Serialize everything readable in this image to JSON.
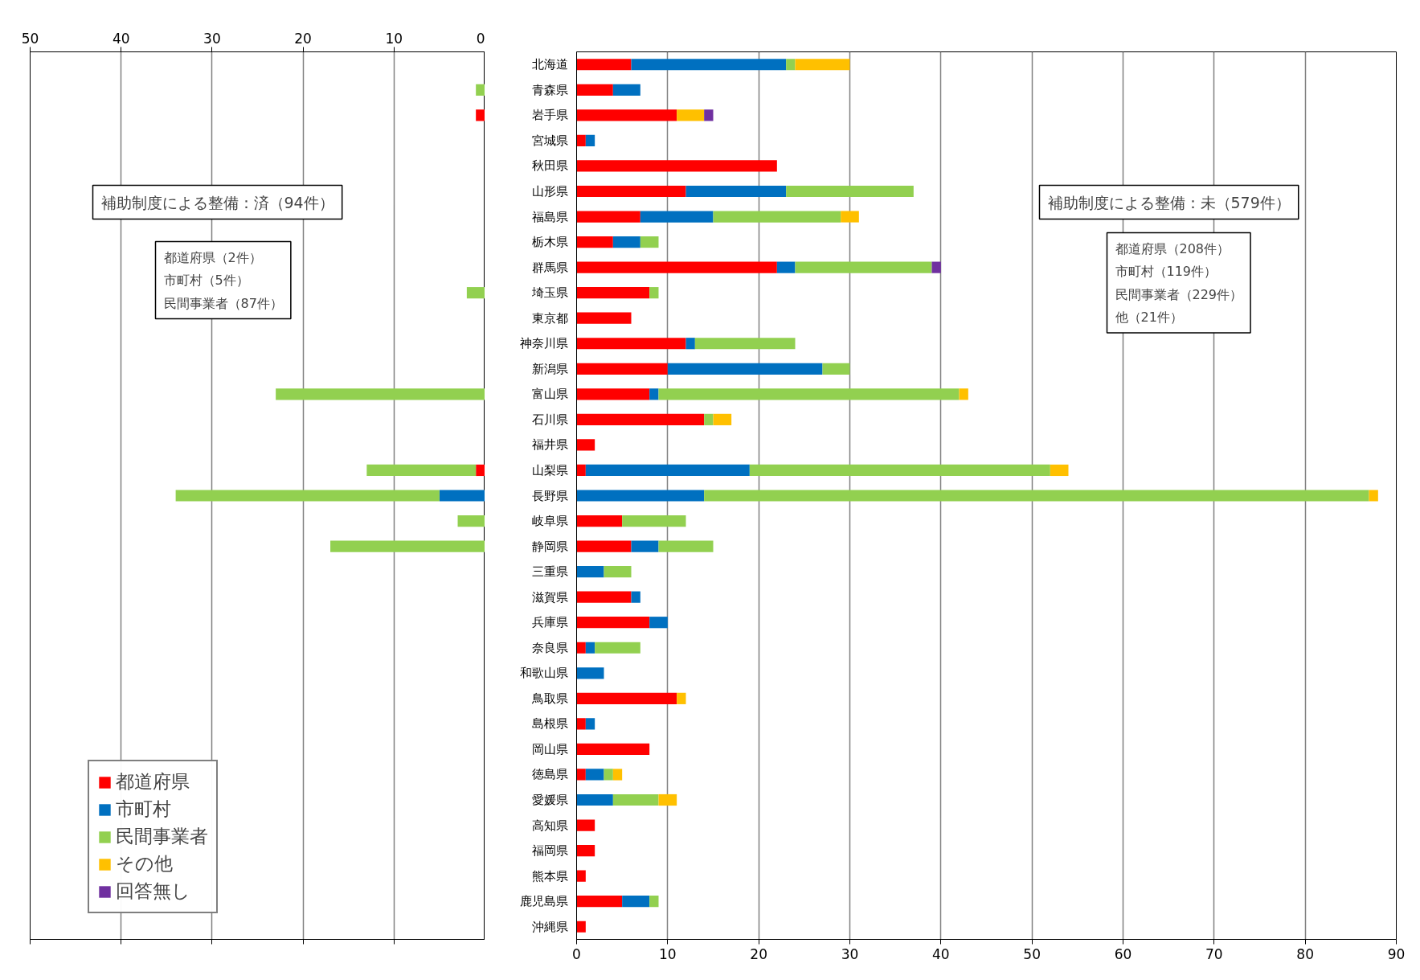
{
  "chart_data": [
    {
      "type": "bar",
      "orientation": "horizontal",
      "stacked": true,
      "legend": "bottom left",
      "grid": "x",
      "tick_labels": "x",
      "annotations": [
        "補助制度による整備：済（94件）",
        "都道府県（2件）",
        "市町村（5件）",
        "民間事業者（87件）"
      ],
      "categories": [
        null,
        null,
        null,
        null,
        null,
        null,
        null,
        null,
        null,
        null,
        null,
        null,
        null,
        null,
        null,
        null,
        null,
        null,
        null,
        null,
        null,
        null,
        null,
        null,
        null,
        null,
        null,
        null,
        null,
        null,
        null,
        null,
        null,
        null,
        null
      ],
      "xlim": [
        50,
        0
      ],
      "xticks": [
        50,
        40,
        30,
        20,
        10,
        0
      ],
      "series": [
        {
          "name": "都道府県",
          "color": "#ff0000",
          "values": [
            0,
            0,
            1,
            0,
            0,
            0,
            0,
            0,
            0,
            0,
            0,
            0,
            0,
            0,
            0,
            0,
            1,
            0,
            0,
            0,
            0,
            0,
            0,
            0,
            0,
            0,
            0,
            0,
            0,
            0,
            0,
            0,
            0,
            0,
            0
          ]
        },
        {
          "name": "市町村",
          "color": "#0070c0",
          "values": [
            0,
            0,
            0,
            0,
            0,
            0,
            0,
            0,
            0,
            0,
            0,
            0,
            0,
            0,
            0,
            0,
            0,
            5,
            0,
            0,
            0,
            0,
            0,
            0,
            0,
            0,
            0,
            0,
            0,
            0,
            0,
            0,
            0,
            0,
            0
          ]
        },
        {
          "name": "民間事業者",
          "color": "#92d050",
          "values": [
            0,
            1,
            0,
            0,
            0,
            0,
            0,
            0,
            0,
            2,
            0,
            0,
            0,
            23,
            0,
            0,
            12,
            29,
            3,
            17,
            0,
            0,
            0,
            0,
            0,
            0,
            0,
            0,
            0,
            0,
            0,
            0,
            0,
            0,
            0
          ]
        },
        {
          "name": "その他",
          "color": "#ffc000",
          "values": [
            0,
            0,
            0,
            0,
            0,
            0,
            0,
            0,
            0,
            0,
            0,
            0,
            0,
            0,
            0,
            0,
            0,
            0,
            0,
            0,
            0,
            0,
            0,
            0,
            0,
            0,
            0,
            0,
            0,
            0,
            0,
            0,
            0,
            0,
            0
          ]
        },
        {
          "name": "回答無し",
          "color": "#7030a0",
          "values": [
            0,
            0,
            0,
            0,
            0,
            0,
            0,
            0,
            0,
            0,
            0,
            0,
            0,
            0,
            0,
            0,
            0,
            0,
            0,
            0,
            0,
            0,
            0,
            0,
            0,
            0,
            0,
            0,
            0,
            0,
            0,
            0,
            0,
            0,
            0
          ]
        }
      ]
    },
    {
      "type": "bar",
      "orientation": "horizontal",
      "stacked": true,
      "grid": "x",
      "annotations": [
        "補助制度による整備：未（579件）",
        "都道府県（208件）",
        "市町村（119件）",
        "民間事業者（229件）",
        "他（21件）"
      ],
      "categories": [
        "北海道",
        "青森県",
        "岩手県",
        "宮城県",
        "秋田県",
        "山形県",
        "福島県",
        "栃木県",
        "群馬県",
        "埼玉県",
        "東京都",
        "神奈川県",
        "新潟県",
        "富山県",
        "石川県",
        "福井県",
        "山梨県",
        "長野県",
        "岐阜県",
        "静岡県",
        "三重県",
        "滋賀県",
        "兵庫県",
        "奈良県",
        "和歌山県",
        "鳥取県",
        "島根県",
        "岡山県",
        "徳島県",
        "愛媛県",
        "高知県",
        "福岡県",
        "熊本県",
        "鹿児島県",
        "沖縄県"
      ],
      "xlim": [
        0,
        90
      ],
      "xticks": [
        0,
        10,
        20,
        30,
        40,
        50,
        60,
        70,
        80,
        90
      ],
      "series": [
        {
          "color": "#ff0000",
          "values": [
            6,
            4,
            11,
            1,
            22,
            12,
            7,
            4,
            22,
            8,
            6,
            12,
            10,
            8,
            14,
            2,
            1,
            0,
            5,
            6,
            0,
            6,
            8,
            1,
            0,
            11,
            1,
            8,
            1,
            0,
            2,
            2,
            1,
            5,
            1
          ]
        },
        {
          "color": "#0070c0",
          "values": [
            17,
            3,
            0,
            1,
            0,
            11,
            8,
            3,
            2,
            0,
            0,
            1,
            17,
            1,
            0,
            0,
            18,
            14,
            0,
            3,
            3,
            1,
            2,
            1,
            3,
            0,
            1,
            0,
            2,
            4,
            0,
            0,
            0,
            3,
            0
          ]
        },
        {
          "color": "#92d050",
          "values": [
            1,
            0,
            0,
            0,
            0,
            14,
            14,
            2,
            15,
            1,
            0,
            11,
            3,
            33,
            1,
            0,
            33,
            73,
            7,
            6,
            3,
            0,
            0,
            5,
            0,
            0,
            0,
            0,
            1,
            5,
            0,
            0,
            0,
            1,
            0
          ]
        },
        {
          "color": "#ffc000",
          "values": [
            6,
            0,
            3,
            0,
            0,
            0,
            2,
            0,
            0,
            0,
            0,
            0,
            0,
            1,
            2,
            0,
            2,
            1,
            0,
            0,
            0,
            0,
            0,
            0,
            0,
            1,
            0,
            0,
            1,
            2,
            0,
            0,
            0,
            0,
            0
          ]
        },
        {
          "color": "#7030a0",
          "values": [
            0,
            0,
            1,
            0,
            0,
            0,
            0,
            0,
            1,
            0,
            0,
            0,
            0,
            0,
            0,
            0,
            0,
            0,
            0,
            0,
            0,
            0,
            0,
            0,
            0,
            0,
            0,
            0,
            0,
            0,
            0,
            0,
            0,
            0,
            0
          ]
        }
      ]
    }
  ]
}
